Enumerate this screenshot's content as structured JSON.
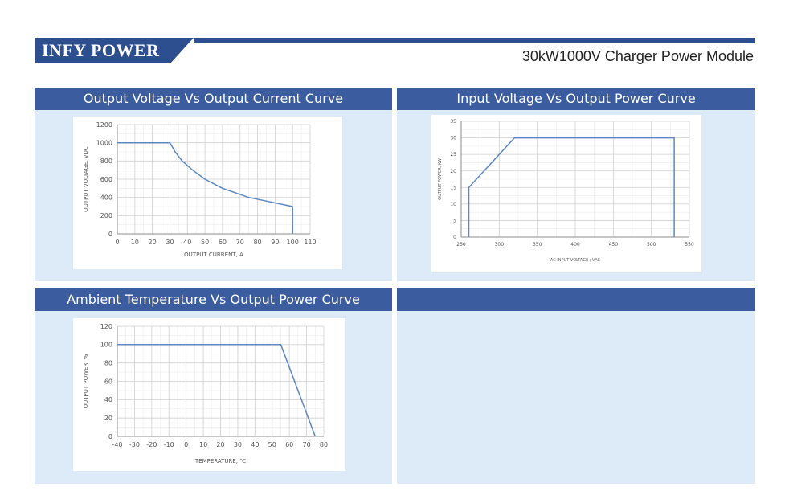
{
  "header": {
    "brand": "INFY POWER",
    "product": "30kW1000V Charger Power Module",
    "accent_color": "#2e4f8f"
  },
  "panels": [
    {
      "title": "Output Voltage Vs Output Current Curve"
    },
    {
      "title": "Input Voltage Vs Output Power Curve"
    },
    {
      "title": "Ambient Temperature Vs Output Power Curve"
    },
    {
      "title": ""
    }
  ],
  "chart_data": [
    {
      "type": "line",
      "title": "Output Voltage Vs Output Current Curve",
      "xlabel": "OUTPUT CURRENT, A",
      "ylabel": "OUTPUT VOLTAGE, VDC",
      "xlim": [
        0,
        110
      ],
      "ylim": [
        0,
        1200
      ],
      "x_ticks": [
        "0",
        "10",
        "20",
        "30",
        "40",
        "50",
        "60",
        "70",
        "80",
        "90",
        "100",
        "110"
      ],
      "y_ticks": [
        "0",
        "200",
        "400",
        "600",
        "800",
        "1000",
        "1200"
      ],
      "grid": true,
      "line_color": "#5b87c4",
      "series": [
        {
          "x": [
            0,
            30,
            33,
            37,
            43,
            50,
            60,
            75,
            100,
            100
          ],
          "y": [
            1000,
            1000,
            900,
            800,
            700,
            600,
            500,
            400,
            300,
            0
          ]
        }
      ]
    },
    {
      "type": "line",
      "title": "Input Voltage Vs Output Power Curve",
      "xlabel": "AC INPUT VOLTAGE ; VAC",
      "ylabel": "OUTPUT POWER, KW",
      "xlim": [
        250,
        550
      ],
      "ylim": [
        0,
        35
      ],
      "x_ticks": [
        "250",
        "300",
        "350",
        "400",
        "450",
        "500",
        "550"
      ],
      "y_ticks": [
        "0",
        "5",
        "10",
        "15",
        "20",
        "25",
        "30",
        "35"
      ],
      "grid": true,
      "line_color": "#5b87c4",
      "series": [
        {
          "x": [
            260,
            260,
            320,
            530,
            530
          ],
          "y": [
            0,
            15,
            30,
            30,
            0
          ]
        }
      ]
    },
    {
      "type": "line",
      "title": "Ambient Temperature Vs Output Power Curve",
      "xlabel": "TEMPERATURE, ℃",
      "ylabel": "OUTPUT POWER, %",
      "xlim": [
        -40,
        80
      ],
      "ylim": [
        0,
        120
      ],
      "x_ticks": [
        "-40",
        "-30",
        "-20",
        "-10",
        "0",
        "10",
        "20",
        "30",
        "40",
        "50",
        "60",
        "70",
        "80"
      ],
      "y_ticks": [
        "0",
        "20",
        "40",
        "60",
        "80",
        "100",
        "120"
      ],
      "grid": true,
      "line_color": "#5b87c4",
      "series": [
        {
          "x": [
            -40,
            55,
            75
          ],
          "y": [
            100,
            100,
            0
          ]
        }
      ]
    }
  ]
}
